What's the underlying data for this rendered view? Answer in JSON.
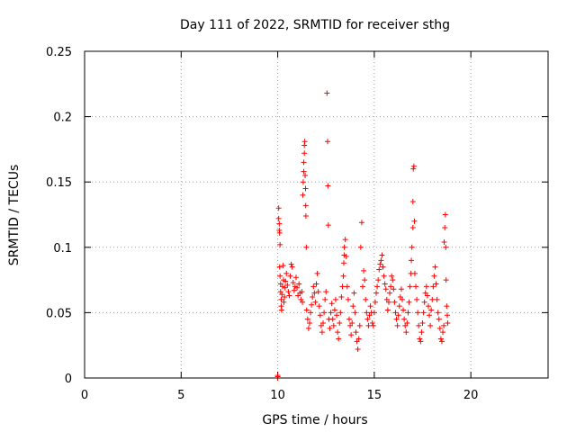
{
  "chart_data": {
    "type": "scatter",
    "title": "Day 111 of 2022, SRMTID for receiver sthg",
    "xlabel": "GPS time / hours",
    "ylabel": "SRMTID / TECUs",
    "xlim": [
      0,
      24
    ],
    "ylim": [
      0,
      0.25
    ],
    "x_ticks": [
      0,
      5,
      10,
      15,
      20
    ],
    "x_tick_labels": [
      "0",
      "5",
      "10",
      "15",
      "20"
    ],
    "y_ticks": [
      0,
      0.05,
      0.1,
      0.15,
      0.2,
      0.25
    ],
    "y_tick_labels": [
      "0",
      "0.05",
      "0.1",
      "0.15",
      "0.2",
      "0.25"
    ],
    "grid": true,
    "marker": "+",
    "series": [
      {
        "name": "sthg",
        "color": "#ff0000",
        "points": [
          [
            10.0,
            0.0
          ],
          [
            10.0,
            0.001
          ],
          [
            10.0,
            0.002
          ],
          [
            10.05,
            0.13
          ],
          [
            10.05,
            0.122
          ],
          [
            10.08,
            0.118
          ],
          [
            10.08,
            0.113
          ],
          [
            10.1,
            0.111
          ],
          [
            10.12,
            0.102
          ],
          [
            10.1,
            0.085
          ],
          [
            10.12,
            0.078
          ],
          [
            10.15,
            0.072
          ],
          [
            10.15,
            0.066
          ],
          [
            10.18,
            0.06
          ],
          [
            10.18,
            0.055
          ],
          [
            10.2,
            0.052
          ],
          [
            10.22,
            0.064
          ],
          [
            10.25,
            0.07
          ],
          [
            10.28,
            0.086
          ],
          [
            10.3,
            0.075
          ],
          [
            10.32,
            0.058
          ],
          [
            10.35,
            0.062
          ],
          [
            10.38,
            0.069
          ],
          [
            10.4,
            0.074
          ],
          [
            10.45,
            0.08
          ],
          [
            10.5,
            0.071
          ],
          [
            10.55,
            0.066
          ],
          [
            10.6,
            0.063
          ],
          [
            10.65,
            0.078
          ],
          [
            10.7,
            0.087
          ],
          [
            10.75,
            0.085
          ],
          [
            10.8,
            0.073
          ],
          [
            10.85,
            0.067
          ],
          [
            10.9,
            0.07
          ],
          [
            10.95,
            0.077
          ],
          [
            11.0,
            0.069
          ],
          [
            11.05,
            0.063
          ],
          [
            11.1,
            0.072
          ],
          [
            11.15,
            0.065
          ],
          [
            11.2,
            0.06
          ],
          [
            11.25,
            0.066
          ],
          [
            11.28,
            0.058
          ],
          [
            11.3,
            0.14
          ],
          [
            11.32,
            0.15
          ],
          [
            11.35,
            0.158
          ],
          [
            11.35,
            0.165
          ],
          [
            11.38,
            0.172
          ],
          [
            11.38,
            0.178
          ],
          [
            11.4,
            0.181
          ],
          [
            11.42,
            0.155
          ],
          [
            11.44,
            0.145
          ],
          [
            11.45,
            0.132
          ],
          [
            11.46,
            0.124
          ],
          [
            11.48,
            0.1
          ],
          [
            11.5,
            0.052
          ],
          [
            11.55,
            0.045
          ],
          [
            11.6,
            0.038
          ],
          [
            11.65,
            0.042
          ],
          [
            11.7,
            0.05
          ],
          [
            11.75,
            0.056
          ],
          [
            11.8,
            0.062
          ],
          [
            11.85,
            0.07
          ],
          [
            11.9,
            0.065
          ],
          [
            11.95,
            0.058
          ],
          [
            12.0,
            0.072
          ],
          [
            12.05,
            0.08
          ],
          [
            12.1,
            0.066
          ],
          [
            12.15,
            0.055
          ],
          [
            12.2,
            0.048
          ],
          [
            12.25,
            0.04
          ],
          [
            12.3,
            0.035
          ],
          [
            12.35,
            0.042
          ],
          [
            12.4,
            0.05
          ],
          [
            12.45,
            0.06
          ],
          [
            12.5,
            0.066
          ],
          [
            12.55,
            0.218
          ],
          [
            12.58,
            0.181
          ],
          [
            12.6,
            0.147
          ],
          [
            12.62,
            0.117
          ],
          [
            12.65,
            0.045
          ],
          [
            12.7,
            0.038
          ],
          [
            12.75,
            0.05
          ],
          [
            12.8,
            0.057
          ],
          [
            12.85,
            0.045
          ],
          [
            12.9,
            0.04
          ],
          [
            12.95,
            0.052
          ],
          [
            13.0,
            0.06
          ],
          [
            13.05,
            0.048
          ],
          [
            13.1,
            0.035
          ],
          [
            13.15,
            0.03
          ],
          [
            13.2,
            0.042
          ],
          [
            13.25,
            0.05
          ],
          [
            13.3,
            0.062
          ],
          [
            13.35,
            0.07
          ],
          [
            13.4,
            0.078
          ],
          [
            13.42,
            0.088
          ],
          [
            13.44,
            0.094
          ],
          [
            13.45,
            0.1
          ],
          [
            13.5,
            0.106
          ],
          [
            13.55,
            0.093
          ],
          [
            13.6,
            0.07
          ],
          [
            13.65,
            0.06
          ],
          [
            13.7,
            0.045
          ],
          [
            13.75,
            0.04
          ],
          [
            13.8,
            0.033
          ],
          [
            13.85,
            0.042
          ],
          [
            13.9,
            0.055
          ],
          [
            13.95,
            0.065
          ],
          [
            14.0,
            0.05
          ],
          [
            14.05,
            0.035
          ],
          [
            14.1,
            0.028
          ],
          [
            14.15,
            0.022
          ],
          [
            14.2,
            0.03
          ],
          [
            14.25,
            0.04
          ],
          [
            14.3,
            0.1
          ],
          [
            14.35,
            0.119
          ],
          [
            14.4,
            0.07
          ],
          [
            14.45,
            0.082
          ],
          [
            14.5,
            0.075
          ],
          [
            14.55,
            0.06
          ],
          [
            14.6,
            0.05
          ],
          [
            14.65,
            0.045
          ],
          [
            14.7,
            0.04
          ],
          [
            14.75,
            0.048
          ],
          [
            14.8,
            0.055
          ],
          [
            14.85,
            0.05
          ],
          [
            14.9,
            0.042
          ],
          [
            14.95,
            0.04
          ],
          [
            15.0,
            0.05
          ],
          [
            15.05,
            0.058
          ],
          [
            15.1,
            0.065
          ],
          [
            15.15,
            0.07
          ],
          [
            15.2,
            0.075
          ],
          [
            15.25,
            0.083
          ],
          [
            15.3,
            0.087
          ],
          [
            15.35,
            0.09
          ],
          [
            15.4,
            0.094
          ],
          [
            15.45,
            0.085
          ],
          [
            15.5,
            0.078
          ],
          [
            15.55,
            0.072
          ],
          [
            15.6,
            0.068
          ],
          [
            15.65,
            0.06
          ],
          [
            15.7,
            0.052
          ],
          [
            15.75,
            0.058
          ],
          [
            15.8,
            0.065
          ],
          [
            15.85,
            0.07
          ],
          [
            15.9,
            0.078
          ],
          [
            15.95,
            0.075
          ],
          [
            16.0,
            0.068
          ],
          [
            16.05,
            0.058
          ],
          [
            16.1,
            0.05
          ],
          [
            16.15,
            0.045
          ],
          [
            16.2,
            0.04
          ],
          [
            16.25,
            0.048
          ],
          [
            16.3,
            0.055
          ],
          [
            16.35,
            0.062
          ],
          [
            16.4,
            0.068
          ],
          [
            16.45,
            0.06
          ],
          [
            16.5,
            0.052
          ],
          [
            16.55,
            0.045
          ],
          [
            16.6,
            0.04
          ],
          [
            16.65,
            0.035
          ],
          [
            16.7,
            0.042
          ],
          [
            16.75,
            0.05
          ],
          [
            16.8,
            0.058
          ],
          [
            16.85,
            0.07
          ],
          [
            16.9,
            0.08
          ],
          [
            16.92,
            0.09
          ],
          [
            16.95,
            0.1
          ],
          [
            17.0,
            0.115
          ],
          [
            17.0,
            0.135
          ],
          [
            17.02,
            0.16
          ],
          [
            17.05,
            0.162
          ],
          [
            17.08,
            0.12
          ],
          [
            17.1,
            0.08
          ],
          [
            17.15,
            0.07
          ],
          [
            17.2,
            0.06
          ],
          [
            17.25,
            0.05
          ],
          [
            17.3,
            0.04
          ],
          [
            17.35,
            0.03
          ],
          [
            17.4,
            0.028
          ],
          [
            17.45,
            0.035
          ],
          [
            17.5,
            0.042
          ],
          [
            17.55,
            0.05
          ],
          [
            17.6,
            0.058
          ],
          [
            17.65,
            0.065
          ],
          [
            17.7,
            0.07
          ],
          [
            17.75,
            0.063
          ],
          [
            17.8,
            0.055
          ],
          [
            17.85,
            0.048
          ],
          [
            17.9,
            0.04
          ],
          [
            17.95,
            0.052
          ],
          [
            18.0,
            0.06
          ],
          [
            18.05,
            0.07
          ],
          [
            18.1,
            0.078
          ],
          [
            18.15,
            0.085
          ],
          [
            18.2,
            0.072
          ],
          [
            18.25,
            0.06
          ],
          [
            18.3,
            0.05
          ],
          [
            18.35,
            0.045
          ],
          [
            18.4,
            0.038
          ],
          [
            18.45,
            0.03
          ],
          [
            18.5,
            0.028
          ],
          [
            18.55,
            0.035
          ],
          [
            18.6,
            0.04
          ],
          [
            18.62,
            0.104
          ],
          [
            18.65,
            0.115
          ],
          [
            18.68,
            0.125
          ],
          [
            18.7,
            0.1
          ],
          [
            18.72,
            0.075
          ],
          [
            18.75,
            0.055
          ],
          [
            18.78,
            0.048
          ],
          [
            18.8,
            0.042
          ]
        ]
      }
    ]
  }
}
